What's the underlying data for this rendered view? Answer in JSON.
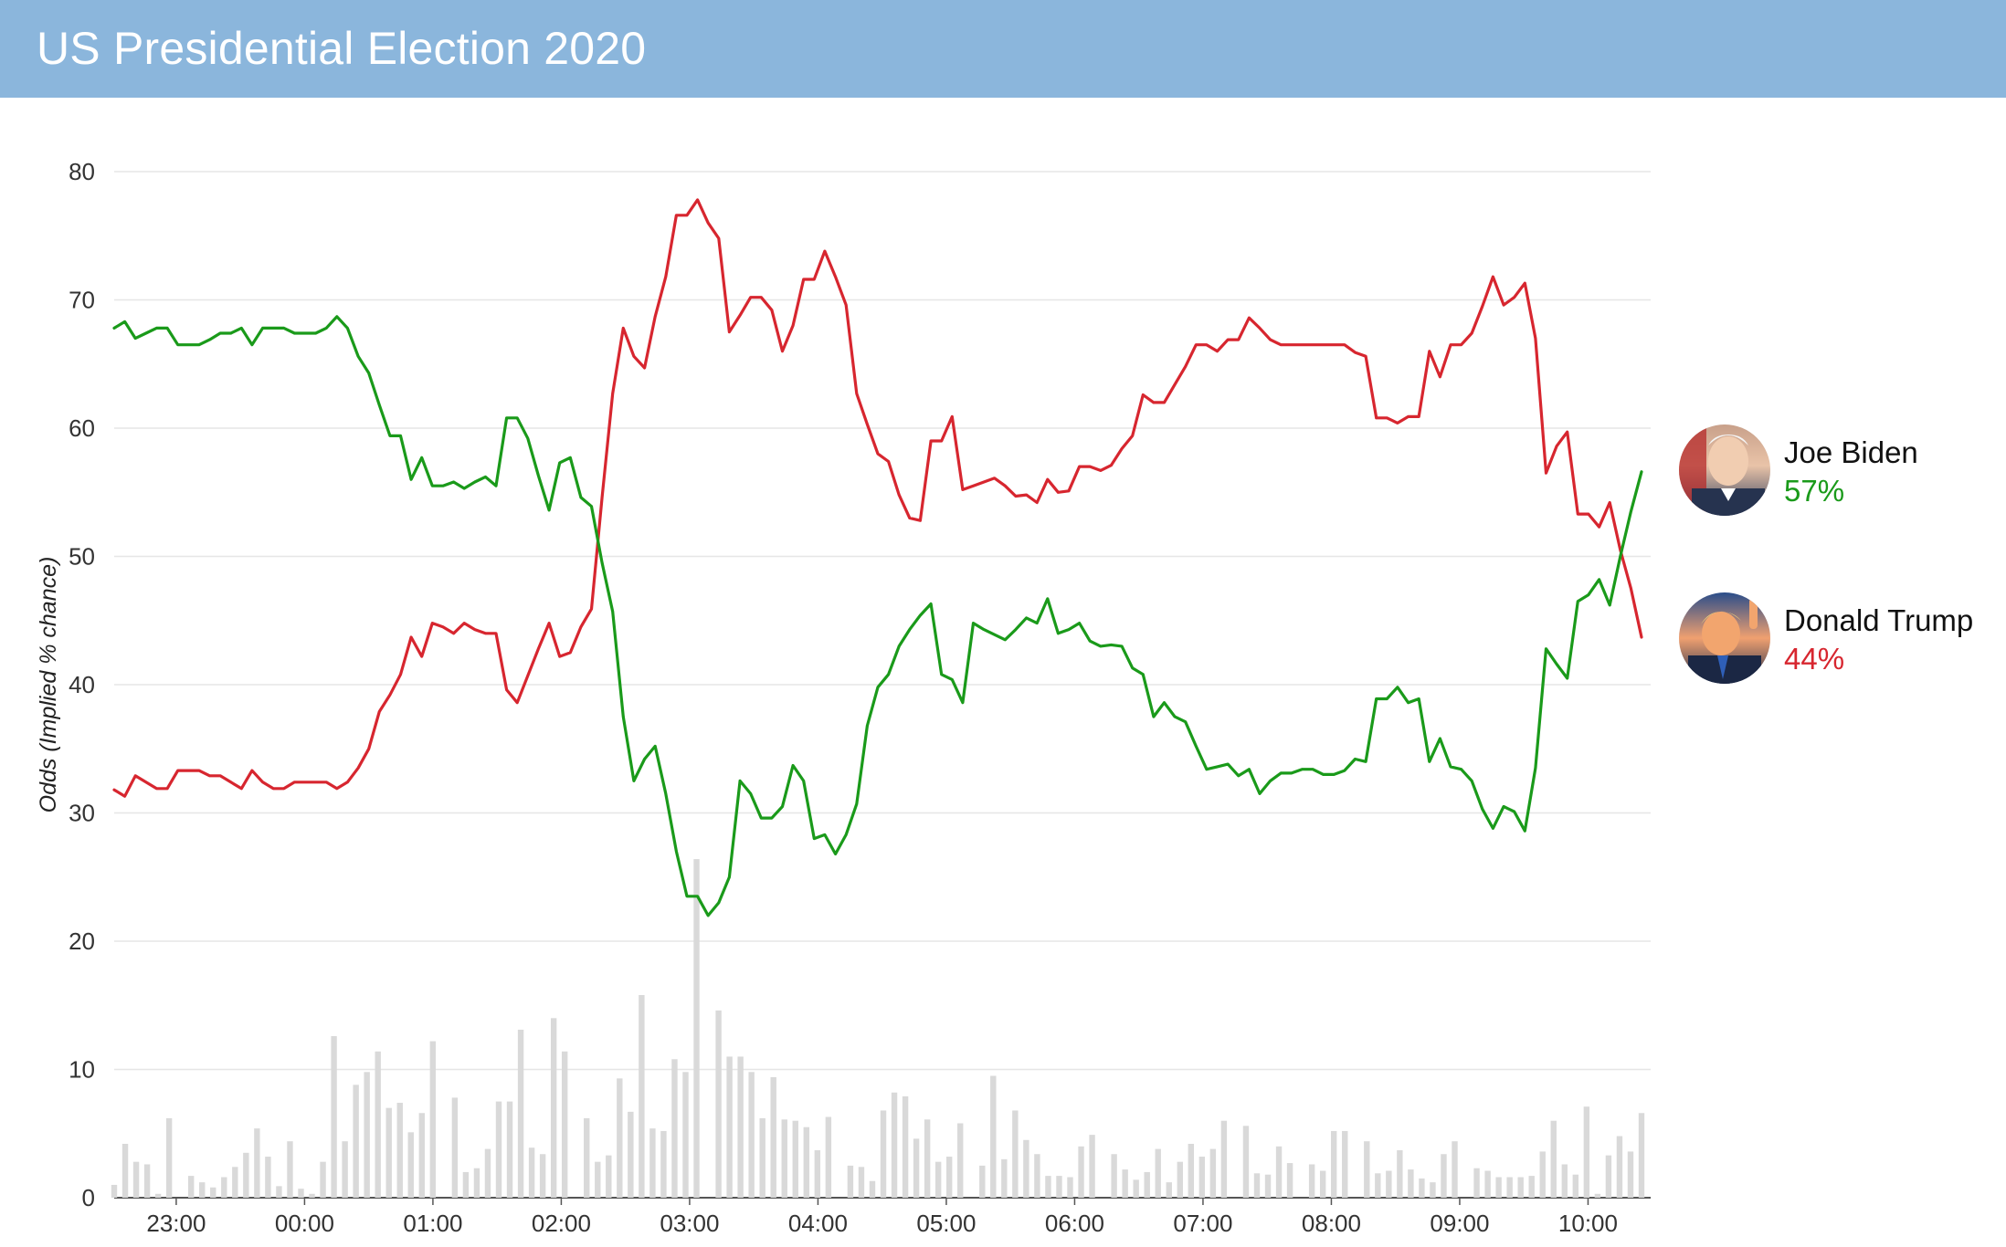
{
  "header": {
    "title": "US Presidential Election 2020"
  },
  "colors": {
    "header_bg": "#8bb6dc",
    "biden": "#1a9a1a",
    "trump": "#d7262f",
    "volume": "#d9d9d9",
    "grid": "#e6e6e6"
  },
  "chart_data": {
    "type": "line",
    "title": "",
    "xlabel": "",
    "ylabel": "Odds (Implied % chance)",
    "ylim": [
      0,
      80
    ],
    "yticks": [
      0,
      10,
      20,
      30,
      40,
      50,
      60,
      70,
      80
    ],
    "xlim": [
      "22:31",
      "10:25"
    ],
    "xticks": [
      "23:00",
      "00:00",
      "01:00",
      "02:00",
      "03:00",
      "04:00",
      "05:00",
      "06:00",
      "07:00",
      "08:00",
      "09:00",
      "10:00"
    ],
    "grid": true,
    "legend": "right",
    "series": [
      {
        "name": "Joe Biden",
        "color": "#1a9a1a",
        "current_label": "57%",
        "icon": "biden-avatar",
        "values": [
          67.8,
          68.3,
          67.0,
          67.4,
          67.8,
          67.8,
          66.5,
          66.5,
          66.5,
          66.9,
          67.4,
          67.4,
          67.8,
          66.5,
          67.8,
          67.8,
          67.8,
          67.4,
          67.4,
          67.4,
          67.8,
          68.7,
          67.8,
          65.6,
          64.3,
          61.8,
          59.4,
          59.4,
          56.0,
          57.7,
          55.5,
          55.5,
          55.8,
          55.3,
          55.8,
          56.2,
          55.5,
          60.8,
          60.8,
          59.2,
          56.3,
          53.6,
          57.3,
          57.7,
          54.6,
          53.9,
          49.5,
          45.7,
          37.5,
          32.5,
          34.2,
          35.2,
          31.5,
          27.0,
          23.5,
          23.5,
          22.0,
          23.0,
          25.0,
          32.5,
          31.5,
          29.6,
          29.6,
          30.5,
          33.7,
          32.5,
          28.0,
          28.3,
          26.8,
          28.3,
          30.7,
          36.8,
          39.8,
          40.8,
          43.0,
          44.3,
          45.4,
          46.3,
          40.8,
          40.4,
          38.6,
          44.8,
          44.3,
          43.9,
          43.5,
          44.3,
          45.2,
          44.8,
          46.7,
          44.0,
          44.3,
          44.8,
          43.4,
          43.0,
          43.1,
          43.0,
          41.3,
          40.8,
          37.5,
          38.6,
          37.5,
          37.1,
          35.2,
          33.4,
          33.6,
          33.8,
          32.9,
          33.4,
          31.5,
          32.5,
          33.1,
          33.1,
          33.4,
          33.4,
          33.0,
          33.0,
          33.3,
          34.2,
          34.0,
          38.9,
          38.9,
          39.8,
          38.6,
          38.9,
          34.0,
          35.8,
          33.6,
          33.4,
          32.5,
          30.3,
          28.8,
          30.5,
          30.1,
          28.6,
          33.5,
          42.8,
          41.6,
          40.5,
          46.5,
          47.0,
          48.2,
          46.2,
          50.0,
          53.5,
          56.6
        ]
      },
      {
        "name": "Donald Trump",
        "color": "#d7262f",
        "current_label": "44%",
        "icon": "trump-avatar",
        "values": [
          31.8,
          31.3,
          32.9,
          32.4,
          31.9,
          31.9,
          33.3,
          33.3,
          33.3,
          32.9,
          32.9,
          32.4,
          31.9,
          33.3,
          32.4,
          31.9,
          31.9,
          32.4,
          32.4,
          32.4,
          32.4,
          31.9,
          32.4,
          33.5,
          35.0,
          37.9,
          39.2,
          40.8,
          43.7,
          42.2,
          44.8,
          44.5,
          44.0,
          44.8,
          44.3,
          44.0,
          44.0,
          39.6,
          38.6,
          40.7,
          42.8,
          44.8,
          42.2,
          42.5,
          44.5,
          45.9,
          54.6,
          62.7,
          67.8,
          65.6,
          64.7,
          68.7,
          71.8,
          76.6,
          76.6,
          77.8,
          76.0,
          74.8,
          67.5,
          68.8,
          70.2,
          70.2,
          69.2,
          66.0,
          68.0,
          71.6,
          71.6,
          73.8,
          71.8,
          69.6,
          62.7,
          60.3,
          58.0,
          57.4,
          54.8,
          53.0,
          52.8,
          59.0,
          59.0,
          60.9,
          55.2,
          55.5,
          55.8,
          56.1,
          55.5,
          54.7,
          54.8,
          54.2,
          56.0,
          55.0,
          55.1,
          57.0,
          57.0,
          56.7,
          57.1,
          58.4,
          59.4,
          62.6,
          62.0,
          62.0,
          63.4,
          64.8,
          66.5,
          66.5,
          66.0,
          66.9,
          66.9,
          68.6,
          67.8,
          66.9,
          66.5,
          66.5,
          66.5,
          66.5,
          66.5,
          66.5,
          66.5,
          65.9,
          65.6,
          60.8,
          60.8,
          60.4,
          60.9,
          60.9,
          66.0,
          64.0,
          66.5,
          66.5,
          67.4,
          69.5,
          71.8,
          69.6,
          70.2,
          71.3,
          67.0,
          56.5,
          58.6,
          59.7,
          53.3,
          53.3,
          52.3,
          54.2,
          50.5,
          47.5,
          43.7
        ]
      },
      {
        "name": "",
        "kind": "volume-bars",
        "color": "#d9d9d9",
        "values": [
          1.0,
          4.2,
          2.8,
          2.6,
          0.3,
          6.2,
          0,
          1.7,
          1.2,
          0.8,
          1.6,
          2.4,
          3.5,
          5.4,
          3.2,
          0.9,
          4.4,
          0.7,
          0.3,
          2.8,
          12.6,
          4.4,
          8.8,
          9.8,
          11.4,
          7.0,
          7.4,
          5.1,
          6.6,
          12.2,
          0,
          7.8,
          2.0,
          2.3,
          3.8,
          7.5,
          7.5,
          13.1,
          3.9,
          3.4,
          14.0,
          11.4,
          0,
          6.2,
          2.8,
          3.3,
          9.3,
          6.7,
          15.8,
          5.4,
          5.2,
          10.8,
          9.8,
          26.4,
          0,
          14.6,
          11.0,
          11.0,
          9.8,
          6.2,
          9.4,
          6.1,
          6.0,
          5.5,
          3.7,
          6.3,
          0,
          2.5,
          2.4,
          1.3,
          6.8,
          8.2,
          7.9,
          4.6,
          6.1,
          2.8,
          3.2,
          5.8,
          0,
          2.5,
          9.5,
          3.0,
          6.8,
          4.5,
          3.4,
          1.7,
          1.7,
          1.6,
          4.0,
          4.9,
          0,
          3.4,
          2.2,
          1.4,
          2.0,
          3.8,
          1.2,
          2.8,
          4.2,
          3.2,
          3.8,
          6.0,
          0,
          5.6,
          1.9,
          1.8,
          4.0,
          2.7,
          0,
          2.6,
          2.1,
          5.2,
          5.2,
          0,
          4.4,
          1.9,
          2.1,
          3.7,
          2.2,
          1.5,
          1.2,
          3.4,
          4.4,
          0,
          2.3,
          2.1,
          1.6,
          1.6,
          1.6,
          1.7,
          3.6,
          6.0,
          2.6,
          1.8,
          7.1,
          0.3,
          3.3,
          4.8,
          3.6,
          6.6
        ]
      }
    ]
  }
}
